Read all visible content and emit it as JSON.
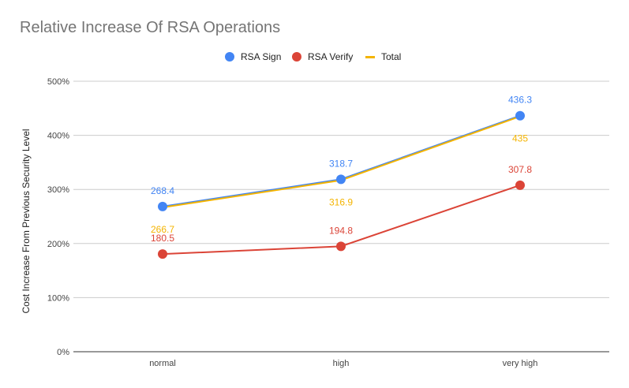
{
  "chart_data": {
    "type": "line",
    "title": "Relative Increase Of RSA Operations",
    "xlabel": "",
    "ylabel": "Cost Increase From Previous Security Level",
    "categories": [
      "normal",
      "high",
      "very high"
    ],
    "ylim": [
      0,
      500
    ],
    "yticks": [
      0,
      100,
      200,
      300,
      400,
      500
    ],
    "ytick_labels": [
      "0%",
      "100%",
      "200%",
      "300%",
      "400%",
      "500%"
    ],
    "grid": true,
    "legend_position": "top",
    "series": [
      {
        "name": "RSA Sign",
        "color": "#4285f4",
        "marker": "circle",
        "values": [
          268.4,
          318.7,
          436.3
        ],
        "labels": [
          "268.4",
          "318.7",
          "436.3"
        ]
      },
      {
        "name": "RSA Verify",
        "color": "#db4437",
        "marker": "circle",
        "values": [
          180.5,
          194.8,
          307.8
        ],
        "labels": [
          "180.5",
          "194.8",
          "307.8"
        ]
      },
      {
        "name": "Total",
        "color": "#f4b400",
        "marker": "none",
        "values": [
          266.7,
          316.9,
          435
        ],
        "labels": [
          "266.7",
          "316.9",
          "435"
        ]
      }
    ]
  }
}
